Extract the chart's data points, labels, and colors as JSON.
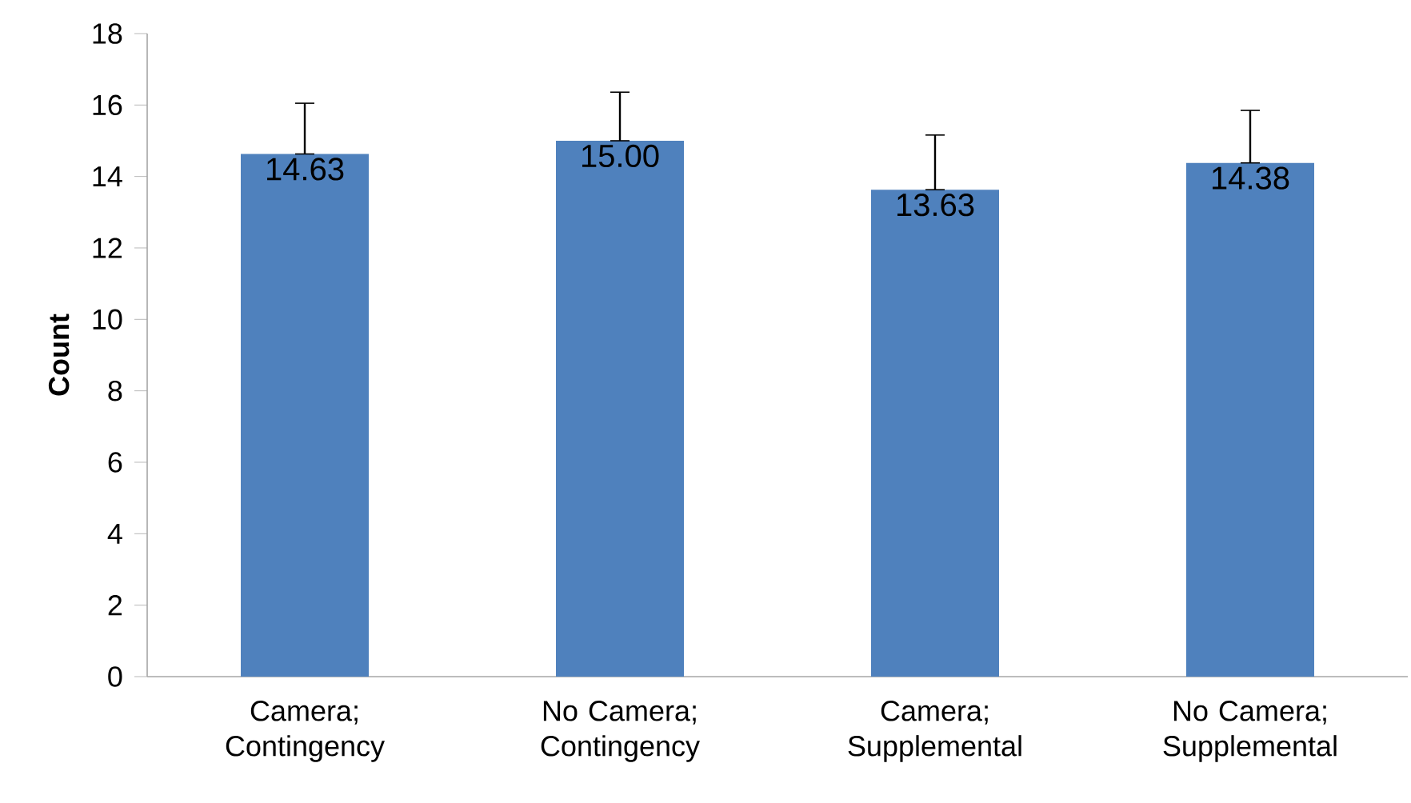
{
  "chart_data": {
    "type": "bar",
    "ylabel": "Count",
    "categories": [
      "Camera; Contingency",
      "No Camera; Contingency",
      "Camera; Supplemental",
      "No Camera; Supplemental"
    ],
    "values": [
      14.63,
      15.0,
      13.63,
      14.38
    ],
    "value_labels": [
      "14.63",
      "15.00",
      "13.63",
      "14.38"
    ],
    "errors": [
      [
        14.63,
        16.05
      ],
      [
        15.0,
        16.36
      ],
      [
        13.63,
        15.16
      ],
      [
        14.38,
        15.85
      ]
    ],
    "color": "#4f81bd",
    "ylim": [
      0,
      18
    ],
    "yticks": [
      0,
      2,
      4,
      6,
      8,
      10,
      12,
      14,
      16,
      18
    ],
    "grid": false
  }
}
